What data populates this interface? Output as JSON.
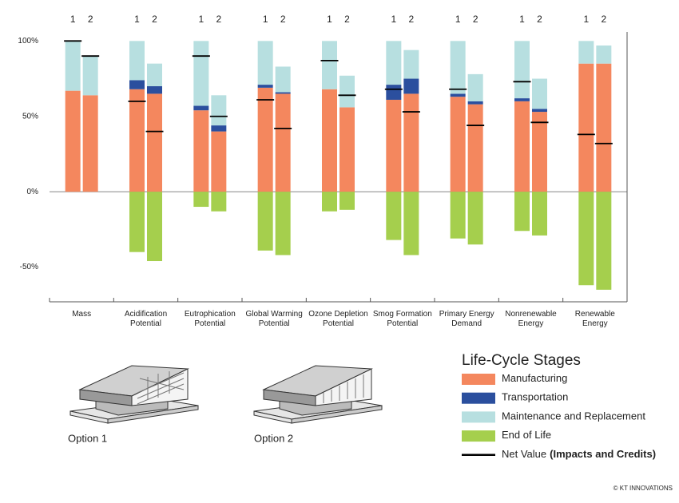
{
  "chart_data": {
    "type": "stacked-bar",
    "options": [
      "1",
      "2"
    ],
    "categories": [
      "Mass",
      "Acidification Potential",
      "Eutrophication Potential",
      "Global Warming Potential",
      "Ozone Depletion Potential",
      "Smog Formation Potential",
      "Primary Energy Demand",
      "Nonrenewable Energy",
      "Renewable Energy"
    ],
    "ylim": [
      -73,
      106
    ],
    "yticks": [
      {
        "value": 100,
        "label": "100%"
      },
      {
        "value": 50,
        "label": "50%"
      },
      {
        "value": 0,
        "label": "0%"
      },
      {
        "value": -50,
        "label": "-50%"
      }
    ],
    "legend_title": "Life-Cycle Stages",
    "series": [
      {
        "name": "Manufacturing",
        "color": "#f4875e",
        "values": [
          [
            67,
            64
          ],
          [
            68,
            65
          ],
          [
            54,
            40
          ],
          [
            69,
            65
          ],
          [
            68,
            56
          ],
          [
            61,
            65
          ],
          [
            63,
            58
          ],
          [
            60,
            53
          ],
          [
            85,
            85
          ]
        ]
      },
      {
        "name": "Transportation",
        "color": "#2b4f9e",
        "values": [
          [
            0,
            0
          ],
          [
            6,
            5
          ],
          [
            3,
            4
          ],
          [
            2,
            1
          ],
          [
            0,
            0
          ],
          [
            10,
            10
          ],
          [
            2,
            2
          ],
          [
            2,
            2
          ],
          [
            0,
            0
          ]
        ]
      },
      {
        "name": "Maintenance and Replacement",
        "color": "#b7dfe0",
        "values": [
          [
            33,
            26
          ],
          [
            26,
            15
          ],
          [
            43,
            20
          ],
          [
            29,
            17
          ],
          [
            32,
            21
          ],
          [
            29,
            19
          ],
          [
            35,
            18
          ],
          [
            38,
            20
          ],
          [
            15,
            12
          ]
        ]
      },
      {
        "name": "End of Life",
        "color": "#a5cf4d",
        "values": [
          [
            0,
            0
          ],
          [
            -40,
            -46
          ],
          [
            -10,
            -13
          ],
          [
            -39,
            -42
          ],
          [
            -13,
            -12
          ],
          [
            -32,
            -42
          ],
          [
            -31,
            -35
          ],
          [
            -26,
            -29
          ],
          [
            -62,
            -65
          ]
        ]
      },
      {
        "name": "Net Value",
        "note": "(Impacts and Credits)",
        "color": "#000000",
        "values": [
          [
            100,
            90
          ],
          [
            60,
            40
          ],
          [
            90,
            50
          ],
          [
            61,
            42
          ],
          [
            87,
            64
          ],
          [
            68,
            53
          ],
          [
            68,
            44
          ],
          [
            73,
            46
          ],
          [
            38,
            32
          ]
        ]
      }
    ]
  },
  "illustrations": [
    "Option 1",
    "Option 2"
  ],
  "credit": "© KT INNOVATIONS"
}
